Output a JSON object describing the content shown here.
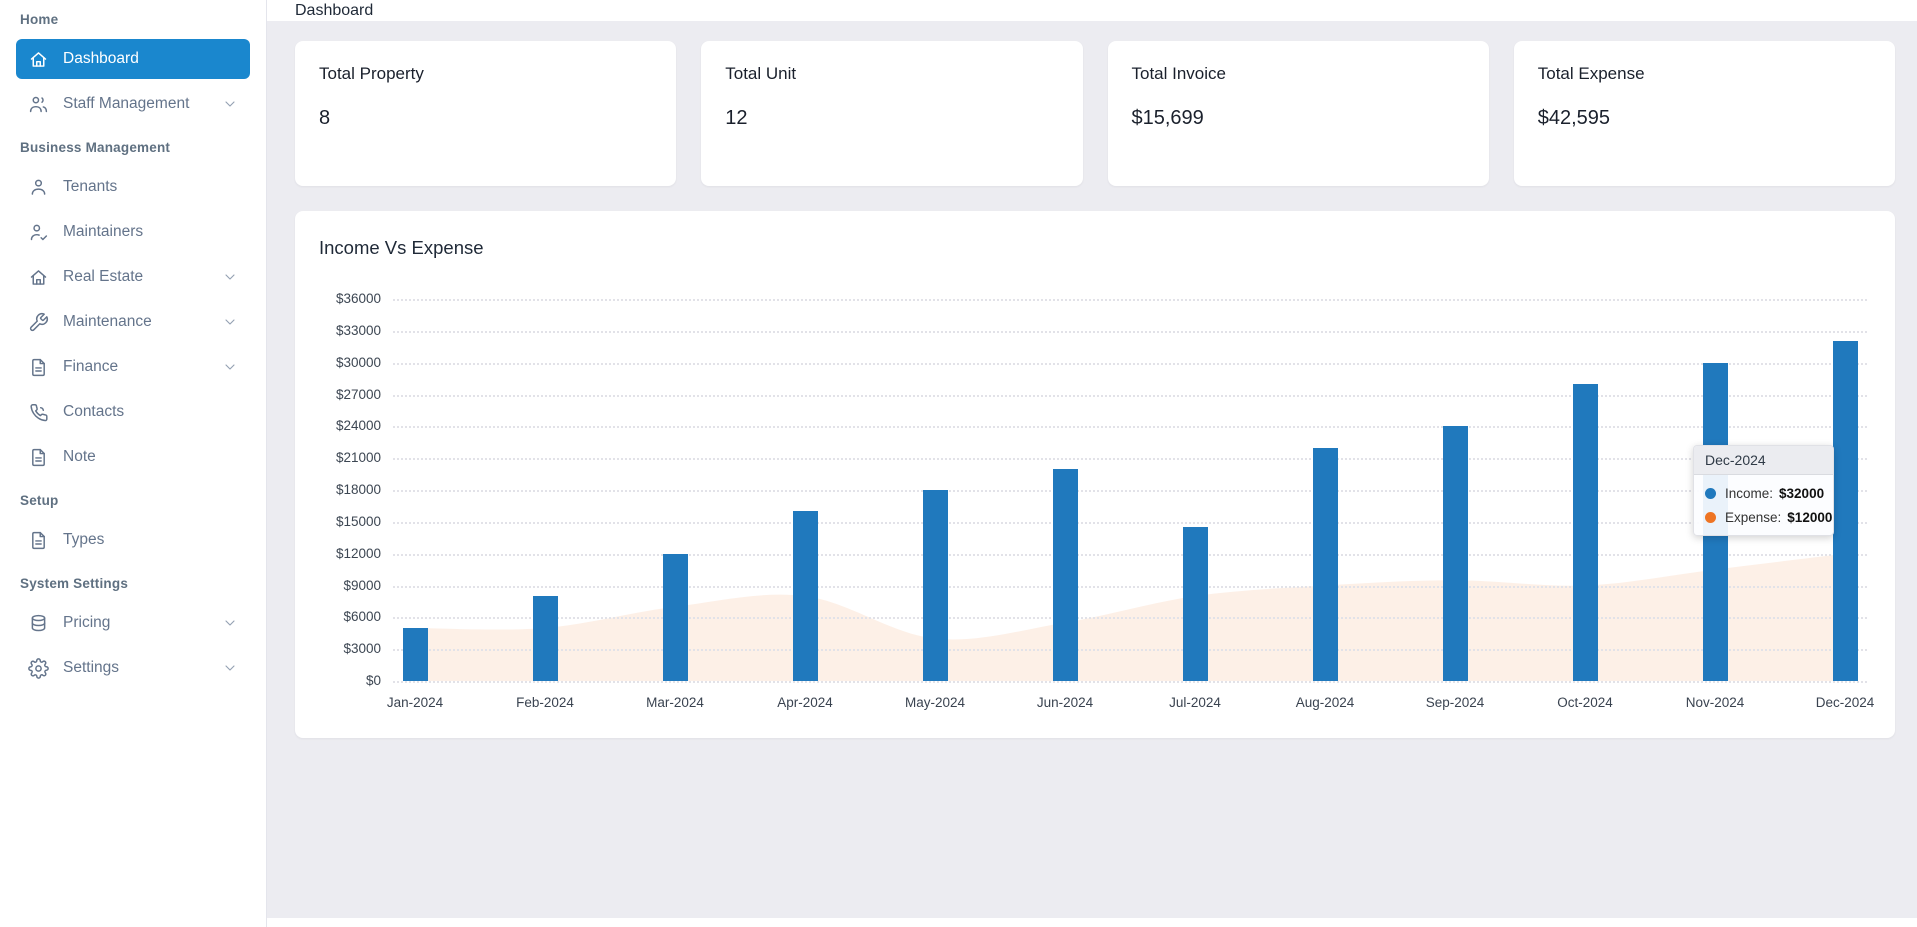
{
  "page": {
    "title": "Dashboard"
  },
  "sidebar": {
    "sections": [
      {
        "header": "Home",
        "items": [
          {
            "label": "Dashboard",
            "icon": "home-icon",
            "active": true,
            "chevron": false
          },
          {
            "label": "Staff Management",
            "icon": "users-icon",
            "active": false,
            "chevron": true
          }
        ]
      },
      {
        "header": "Business Management",
        "items": [
          {
            "label": "Tenants",
            "icon": "user-icon",
            "active": false,
            "chevron": false
          },
          {
            "label": "Maintainers",
            "icon": "user-check-icon",
            "active": false,
            "chevron": false
          },
          {
            "label": "Real Estate",
            "icon": "home-icon",
            "active": false,
            "chevron": true
          },
          {
            "label": "Maintenance",
            "icon": "wrench-icon",
            "active": false,
            "chevron": true
          },
          {
            "label": "Finance",
            "icon": "file-icon",
            "active": false,
            "chevron": true
          },
          {
            "label": "Contacts",
            "icon": "phone-icon",
            "active": false,
            "chevron": false
          },
          {
            "label": "Note",
            "icon": "file-icon",
            "active": false,
            "chevron": false
          }
        ]
      },
      {
        "header": "Setup",
        "items": [
          {
            "label": "Types",
            "icon": "file-icon",
            "active": false,
            "chevron": false
          }
        ]
      },
      {
        "header": "System Settings",
        "items": [
          {
            "label": "Pricing",
            "icon": "database-icon",
            "active": false,
            "chevron": true
          },
          {
            "label": "Settings",
            "icon": "gear-icon",
            "active": false,
            "chevron": true
          }
        ]
      }
    ]
  },
  "cards": [
    {
      "title": "Total Property",
      "value": "8"
    },
    {
      "title": "Total Unit",
      "value": "12"
    },
    {
      "title": "Total Invoice",
      "value": "$15,699"
    },
    {
      "title": "Total Expense",
      "value": "$42,595"
    }
  ],
  "chart_data": {
    "type": "bar",
    "title": "Income Vs Expense",
    "categories": [
      "Jan-2024",
      "Feb-2024",
      "Mar-2024",
      "Apr-2024",
      "May-2024",
      "Jun-2024",
      "Jul-2024",
      "Aug-2024",
      "Sep-2024",
      "Oct-2024",
      "Nov-2024",
      "Dec-2024"
    ],
    "series": [
      {
        "name": "Income",
        "type": "bar",
        "color": "#2079bd",
        "values": [
          5000,
          8000,
          12000,
          16000,
          18000,
          20000,
          14500,
          22000,
          24000,
          28000,
          30000,
          32000
        ]
      },
      {
        "name": "Expense",
        "type": "area",
        "color": "#ee7423",
        "fill": "rgba(238,116,35,0.11)",
        "values": [
          5000,
          5000,
          7000,
          8000,
          4000,
          5500,
          8000,
          9000,
          9500,
          9000,
          10500,
          12000
        ]
      }
    ],
    "ylim": [
      0,
      36000
    ],
    "y_tick_step": 3000,
    "y_ticks": [
      "$0",
      "$3000",
      "$6000",
      "$9000",
      "$12000",
      "$15000",
      "$18000",
      "$21000",
      "$24000",
      "$27000",
      "$30000",
      "$33000",
      "$36000"
    ],
    "grid": "dotted horizontal",
    "legend_position": "none",
    "tooltip": {
      "month": "Dec-2024",
      "rows": [
        {
          "label": "Income:",
          "value": "$32000",
          "color": "#2079bd"
        },
        {
          "label": "Expense:",
          "value": "$12000",
          "color": "#ee7423"
        }
      ]
    }
  }
}
